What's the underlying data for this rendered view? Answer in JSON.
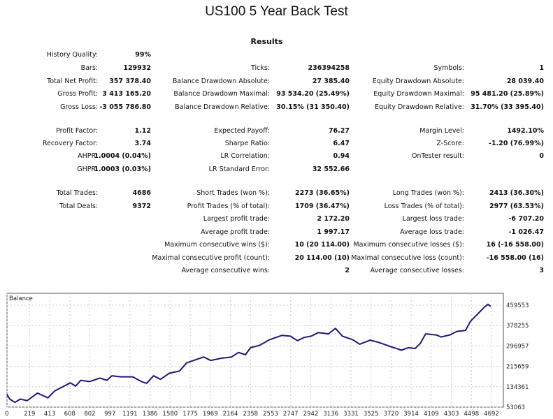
{
  "title": "US100 5 Year Back Test",
  "results_heading": "Results",
  "rows": [
    [
      "History Quality:",
      "99%",
      "",
      "",
      "",
      ""
    ],
    [
      "Bars:",
      "129932",
      "Ticks:",
      "236394258",
      "Symbols:",
      "1"
    ],
    [
      "Total Net Profit:",
      "357 378.40",
      "Balance Drawdown Absolute:",
      "27 385.40",
      "Equity Drawdown Absolute:",
      "28 039.40"
    ],
    [
      "Gross Profit:",
      "3 413 165.20",
      "Balance Drawdown Maximal:",
      "93 534.20 (25.49%)",
      "Equity Drawdown Maximal:",
      "95 481.20 (25.89%)"
    ],
    [
      "Gross Loss:",
      "-3 055 786.80",
      "Balance Drawdown Relative:",
      "30.15% (31 350.40)",
      "Equity Drawdown Relative:",
      "31.70% (33 395.40)"
    ],
    [
      "Profit Factor:",
      "1.12",
      "Expected Payoff:",
      "76.27",
      "Margin Level:",
      "1492.10%"
    ],
    [
      "Recovery Factor:",
      "3.74",
      "Sharpe Ratio:",
      "6.47",
      "Z-Score:",
      "-1.20 (76.99%)"
    ],
    [
      "AHPR:",
      "1.0004 (0.04%)",
      "LR Correlation:",
      "0.94",
      "OnTester result:",
      "0"
    ],
    [
      "GHPR:",
      "1.0003 (0.03%)",
      "LR Standard Error:",
      "32 552.66",
      "",
      ""
    ],
    [
      "Total Trades:",
      "4686",
      "Short Trades (won %):",
      "2273 (36.65%)",
      "Long Trades (won %):",
      "2413 (36.30%)"
    ],
    [
      "Total Deals:",
      "9372",
      "Profit Trades (% of total):",
      "1709 (36.47%)",
      "Loss Trades (% of total):",
      "2977 (63.53%)"
    ],
    [
      "",
      "",
      "Largest profit trade:",
      "2 172.20",
      "Largest loss trade:",
      "-6 707.20"
    ],
    [
      "",
      "",
      "Average profit trade:",
      "1 997.17",
      "Average loss trade:",
      "-1 026.47"
    ],
    [
      "",
      "",
      "Maximum consecutive wins ($):",
      "10 (20 114.00)",
      "Maximum consecutive losses ($):",
      "16 (-16 558.00)"
    ],
    [
      "",
      "",
      "Maximal consecutive profit (count):",
      "20 114.00 (10)",
      "Maximal consecutive loss (count):",
      "-16 558.00 (16)"
    ],
    [
      "",
      "",
      "Average consecutive wins:",
      "2",
      "Average consecutive losses:",
      "3"
    ]
  ],
  "chart_data": {
    "type": "line",
    "title": "Balance",
    "line_color": "#1a1a7a",
    "grid": true,
    "x_ticks": [
      0,
      219,
      413,
      608,
      802,
      997,
      1191,
      1386,
      1580,
      1775,
      1969,
      2164,
      2358,
      2553,
      2747,
      2942,
      3136,
      3331,
      3525,
      3720,
      3914,
      4109,
      4303,
      4498,
      4692
    ],
    "y_ticks": [
      53063,
      134361,
      215659,
      296957,
      378255,
      459553
    ],
    "xlim": [
      0,
      4692
    ],
    "ylim": [
      53063,
      459553
    ],
    "series": [
      {
        "x": [
          0,
          27,
          77,
          128,
          195,
          295,
          396,
          463,
          530,
          614,
          664,
          715,
          799,
          899,
          967,
          1017,
          1101,
          1218,
          1302,
          1352,
          1420,
          1487,
          1571,
          1671,
          1739,
          1806,
          1906,
          1973,
          2074,
          2175,
          2242,
          2309,
          2359,
          2443,
          2544,
          2661,
          2745,
          2812,
          2879,
          2946,
          3014,
          3114,
          3181,
          3249,
          3349,
          3416,
          3517,
          3584,
          3651,
          3718,
          3786,
          3819,
          3886,
          3953,
          4004,
          4054,
          4155,
          4205,
          4289,
          4356,
          4440,
          4490,
          4557,
          4624,
          4658,
          4686
        ],
        "y": [
          104000,
          85000,
          72000,
          85000,
          79000,
          109000,
          90000,
          118000,
          132000,
          150000,
          137000,
          160000,
          155000,
          169000,
          160000,
          178000,
          174000,
          174000,
          155000,
          148000,
          178000,
          164000,
          188000,
          197000,
          229000,
          239000,
          253000,
          239000,
          248000,
          253000,
          271000,
          262000,
          290000,
          299000,
          322000,
          339000,
          336000,
          318000,
          331000,
          336000,
          350000,
          345000,
          367000,
          336000,
          322000,
          304000,
          320000,
          313000,
          304000,
          294000,
          285000,
          280000,
          290000,
          287000,
          308000,
          345000,
          341000,
          333000,
          341000,
          355000,
          359000,
          396000,
          424000,
          452000,
          463000,
          454000
        ]
      }
    ]
  }
}
